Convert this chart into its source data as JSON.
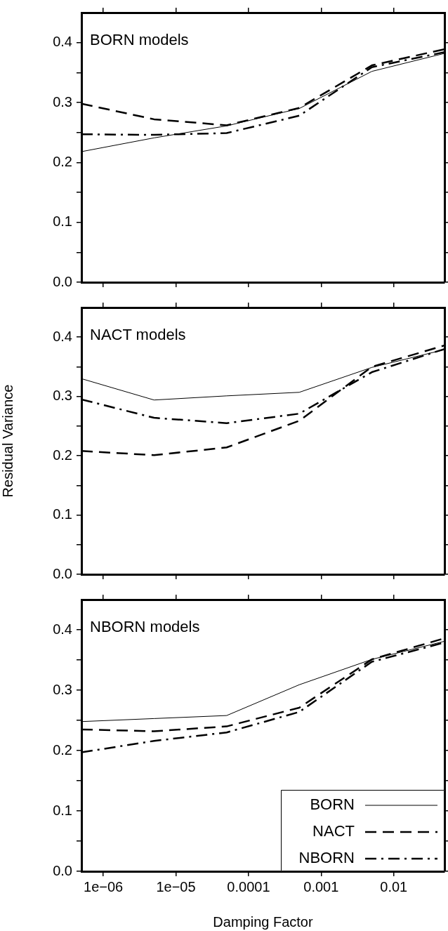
{
  "chart_data": [
    {
      "type": "line",
      "title": "BORN models",
      "x": [
        5e-07,
        5e-06,
        5e-05,
        0.0005,
        0.005,
        0.05
      ],
      "series": [
        {
          "color": "#000000",
          "line_style": "solid",
          "values": [
            0.218,
            0.241,
            0.261,
            0.29,
            0.352,
            0.382
          ]
        },
        {
          "color": "#000000",
          "line_style": "dashed",
          "values": [
            0.298,
            0.272,
            0.262,
            0.291,
            0.362,
            0.389
          ]
        },
        {
          "color": "#000000",
          "line_style": "dashdot",
          "values": [
            0.247,
            0.246,
            0.249,
            0.278,
            0.359,
            0.384
          ]
        }
      ],
      "xlim": [
        5e-07,
        0.05
      ],
      "ylim": [
        0,
        0.45
      ],
      "log": "x",
      "grid": false,
      "tick_labels": "y",
      "xticks": [
        {
          "value": 1e-06,
          "label": null
        },
        {
          "value": 1e-05,
          "label": null
        },
        {
          "value": 0.0001,
          "label": null
        },
        {
          "value": 0.001,
          "label": null
        },
        {
          "value": 0.01,
          "label": null
        }
      ],
      "yticks": [
        {
          "value": 0,
          "label": "0.0"
        },
        {
          "value": 0.05,
          "label": null
        },
        {
          "value": 0.1,
          "label": "0.1"
        },
        {
          "value": 0.15,
          "label": null
        },
        {
          "value": 0.2,
          "label": "0.2"
        },
        {
          "value": 0.25,
          "label": null
        },
        {
          "value": 0.3,
          "label": "0.3"
        },
        {
          "value": 0.35,
          "label": null
        },
        {
          "value": 0.4,
          "label": "0.4"
        }
      ]
    },
    {
      "type": "line",
      "title": "NACT models",
      "ylabel": "Residual Variance",
      "x": [
        5e-07,
        5e-06,
        5e-05,
        0.0005,
        0.005,
        0.05
      ],
      "series": [
        {
          "color": "#000000",
          "line_style": "solid",
          "values": [
            0.33,
            0.294,
            0.301,
            0.307,
            0.349,
            0.379
          ]
        },
        {
          "color": "#000000",
          "line_style": "dashed",
          "values": [
            0.208,
            0.201,
            0.214,
            0.259,
            0.35,
            0.386
          ]
        },
        {
          "color": "#000000",
          "line_style": "dashdot",
          "values": [
            0.295,
            0.264,
            0.255,
            0.271,
            0.341,
            0.38
          ]
        }
      ],
      "xlim": [
        5e-07,
        0.05
      ],
      "ylim": [
        0,
        0.45
      ],
      "log": "x",
      "grid": false,
      "tick_labels": "y",
      "xticks": [
        {
          "value": 1e-06,
          "label": null
        },
        {
          "value": 1e-05,
          "label": null
        },
        {
          "value": 0.0001,
          "label": null
        },
        {
          "value": 0.001,
          "label": null
        },
        {
          "value": 0.01,
          "label": null
        }
      ],
      "yticks": [
        {
          "value": 0,
          "label": "0.0"
        },
        {
          "value": 0.05,
          "label": null
        },
        {
          "value": 0.1,
          "label": "0.1"
        },
        {
          "value": 0.15,
          "label": null
        },
        {
          "value": 0.2,
          "label": "0.2"
        },
        {
          "value": 0.25,
          "label": null
        },
        {
          "value": 0.3,
          "label": "0.3"
        },
        {
          "value": 0.35,
          "label": null
        },
        {
          "value": 0.4,
          "label": "0.4"
        }
      ]
    },
    {
      "type": "line",
      "title": "NBORN models",
      "xlabel": "Damping Factor",
      "x": [
        5e-07,
        5e-06,
        5e-05,
        0.0005,
        0.005,
        0.05
      ],
      "series": [
        {
          "name": "BORN",
          "color": "#000000",
          "line_style": "solid",
          "values": [
            0.248,
            0.253,
            0.258,
            0.309,
            0.351,
            0.381
          ]
        },
        {
          "name": "NACT",
          "color": "#000000",
          "line_style": "dashed",
          "values": [
            0.235,
            0.232,
            0.24,
            0.271,
            0.351,
            0.386
          ]
        },
        {
          "name": "NBORN",
          "color": "#000000",
          "line_style": "dashdot",
          "values": [
            0.197,
            0.216,
            0.23,
            0.264,
            0.347,
            0.379
          ]
        }
      ],
      "xlim": [
        5e-07,
        0.05
      ],
      "ylim": [
        0,
        0.45
      ],
      "log": "x",
      "grid": false,
      "legend": "bottom right",
      "xticks": [
        {
          "value": 1e-06,
          "label": "1e−06"
        },
        {
          "value": 1e-05,
          "label": "1e−05"
        },
        0.0001,
        0.001,
        0.01
      ],
      "yticks": [
        {
          "value": 0,
          "label": "0.0"
        },
        {
          "value": 0.05,
          "label": null
        },
        {
          "value": 0.1,
          "label": "0.1"
        },
        {
          "value": 0.15,
          "label": null
        },
        {
          "value": 0.2,
          "label": "0.2"
        },
        {
          "value": 0.25,
          "label": null
        },
        {
          "value": 0.3,
          "label": "0.3"
        },
        {
          "value": 0.35,
          "label": null
        },
        {
          "value": 0.4,
          "label": "0.4"
        }
      ]
    }
  ]
}
